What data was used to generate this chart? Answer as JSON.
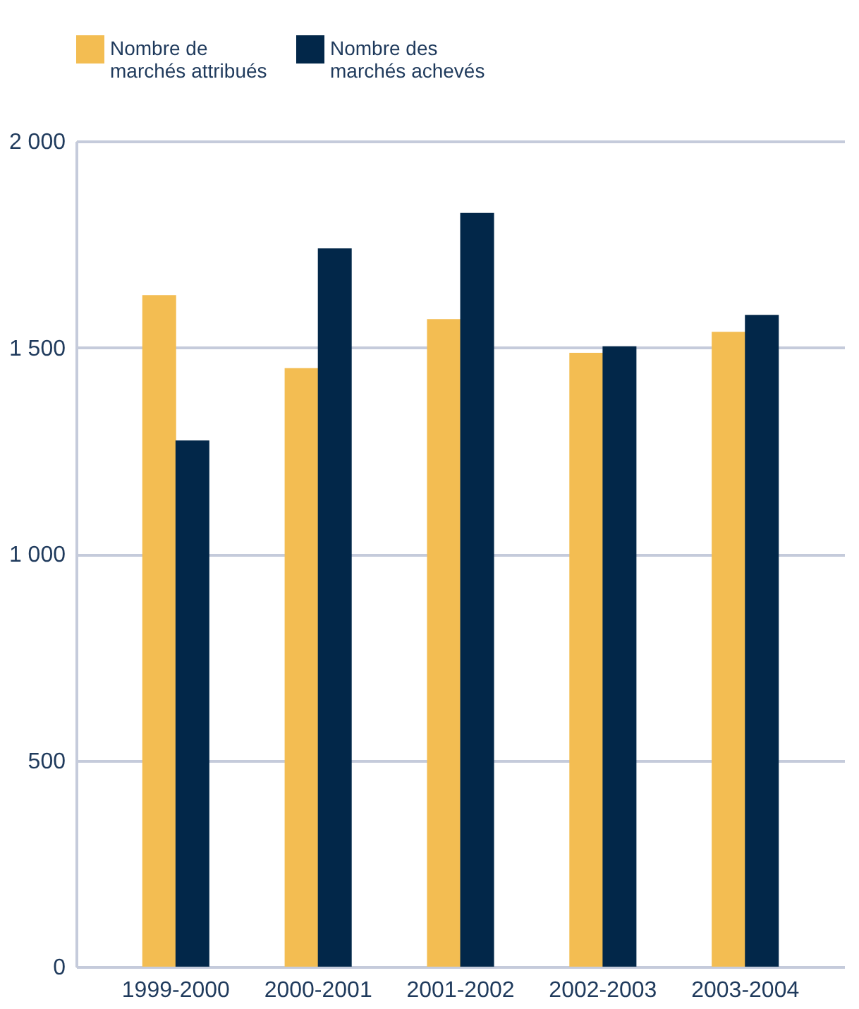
{
  "chart_data": {
    "type": "bar",
    "categories": [
      "1999-2000",
      "2000-2001",
      "2001-2002",
      "2002-2003",
      "2003-2004"
    ],
    "series": [
      {
        "name": "Nombre de\nmarchés attribués",
        "color": "#f3bd52",
        "values": [
          1627,
          1450,
          1569,
          1487,
          1538
        ]
      },
      {
        "name": "Nombre des\nmarchés achevés",
        "color": "#022749",
        "values": [
          1275,
          1740,
          1826,
          1503,
          1579
        ]
      }
    ],
    "ylim": [
      0,
      2000
    ],
    "yticks": [
      0,
      {
        "value": 500,
        "label": "500"
      },
      {
        "value": 1000,
        "label": "1 000"
      },
      {
        "value": 1500,
        "label": "1 500"
      },
      {
        "value": 2000,
        "label": "2 000"
      }
    ],
    "grid": "y",
    "legend": "top left"
  }
}
